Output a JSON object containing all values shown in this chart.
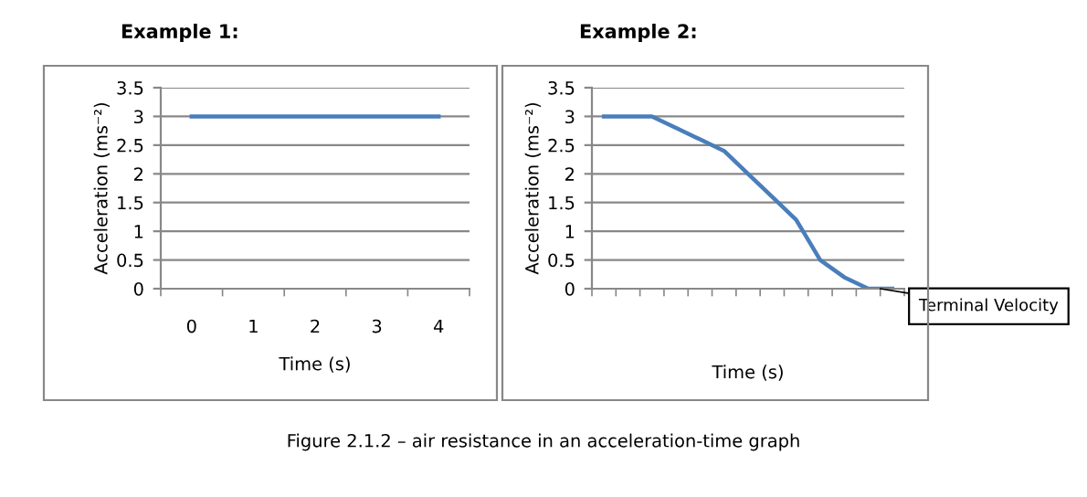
{
  "chart_data": [
    {
      "type": "line",
      "title": "Example 1:",
      "xlabel": "Time (s)",
      "ylabel": "Acceleration (ms⁻²)",
      "categories": [
        "0",
        "1",
        "2",
        "3",
        "4"
      ],
      "series": [
        {
          "color": "#4a7ebb",
          "values": [
            3,
            3,
            3,
            3,
            3
          ]
        }
      ],
      "ylim": [
        0,
        3.5
      ],
      "yticks": [
        0,
        0.5,
        1,
        1.5,
        2,
        2.5,
        3,
        3.5
      ],
      "grid": "y",
      "legend": false,
      "marker": "none"
    },
    {
      "type": "line",
      "title": "Example 2:",
      "xlabel": "Time (s)",
      "ylabel": "Acceleration (ms⁻²)",
      "categories": [
        null,
        null,
        null,
        null,
        null,
        null,
        null,
        null,
        null,
        null,
        null,
        null,
        null
      ],
      "series": [
        {
          "color": "#4a7ebb",
          "values": [
            3,
            3,
            3,
            2.8,
            2.6,
            2.4,
            2.0,
            1.6,
            1.2,
            0.5,
            0.2,
            0,
            0
          ]
        }
      ],
      "ylim": [
        0,
        3.5
      ],
      "yticks": [
        0,
        0.5,
        1,
        1.5,
        2,
        2.5,
        3,
        3.5
      ],
      "grid": "y",
      "legend": false,
      "marker": "none",
      "annotations": [
        "Terminal Velocity",
        "Figure 2.1.2 – air resistance in an acceleration-time graph"
      ]
    }
  ]
}
